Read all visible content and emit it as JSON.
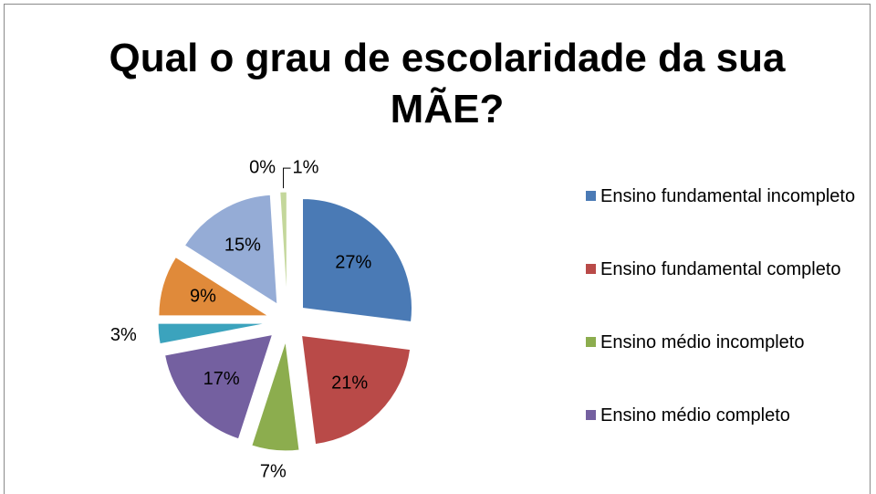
{
  "chart_data": {
    "type": "pie",
    "title": "Qual o grau de escolaridade da sua MÃE?",
    "categories": [
      "Ensino fundamental incompleto",
      "Ensino fundamental completo",
      "Ensino médio incompleto",
      "Ensino médio completo",
      null,
      null,
      null,
      null,
      null
    ],
    "values": [
      27,
      21,
      7,
      17,
      3,
      9,
      15,
      0,
      1
    ],
    "value_labels": [
      "27%",
      "21%",
      "7%",
      "17%",
      "3%",
      "9%",
      "15%",
      "0%",
      "1%"
    ],
    "colors": [
      "#4a7ab5",
      "#b94a48",
      "#8cad4e",
      "#7460a0",
      "#3ba3bd",
      "#e08a3a",
      "#95acd6",
      "#d99694",
      "#c4d79b"
    ]
  }
}
